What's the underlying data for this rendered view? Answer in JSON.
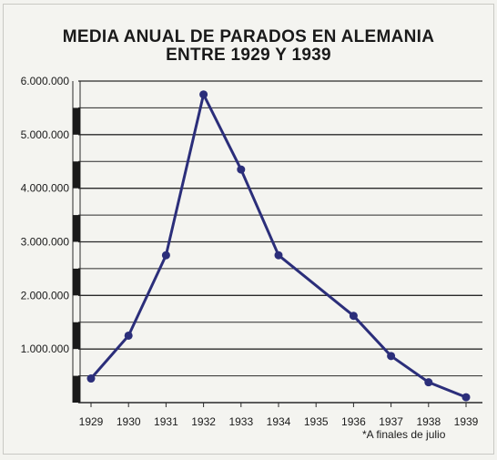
{
  "chart_data": {
    "type": "line",
    "title": "MEDIA ANUAL DE PARADOS EN ALEMANIA",
    "subtitle": "ENTRE 1929 Y 1939",
    "xlabel": "",
    "ylabel": "",
    "ylim": [
      0,
      6000000
    ],
    "y_ticks": [
      "1.000.000",
      "2.000.000",
      "3.000.000",
      "4.000.000",
      "5.000.000",
      "6.000.000"
    ],
    "y_tick_values": [
      1000000,
      2000000,
      3000000,
      4000000,
      5000000,
      6000000
    ],
    "categories": [
      "1929",
      "1930",
      "1931",
      "1932",
      "1933",
      "1934",
      "1935",
      "1936",
      "1937",
      "1938",
      "1939"
    ],
    "series": [
      {
        "values": [
          450000,
          1250000,
          2750000,
          5750000,
          4350000,
          2750000,
          null,
          1620000,
          870000,
          380000,
          100000
        ]
      }
    ],
    "grid": true,
    "line_color": "#2b2e7a",
    "footnote": "*A finales de julio"
  }
}
